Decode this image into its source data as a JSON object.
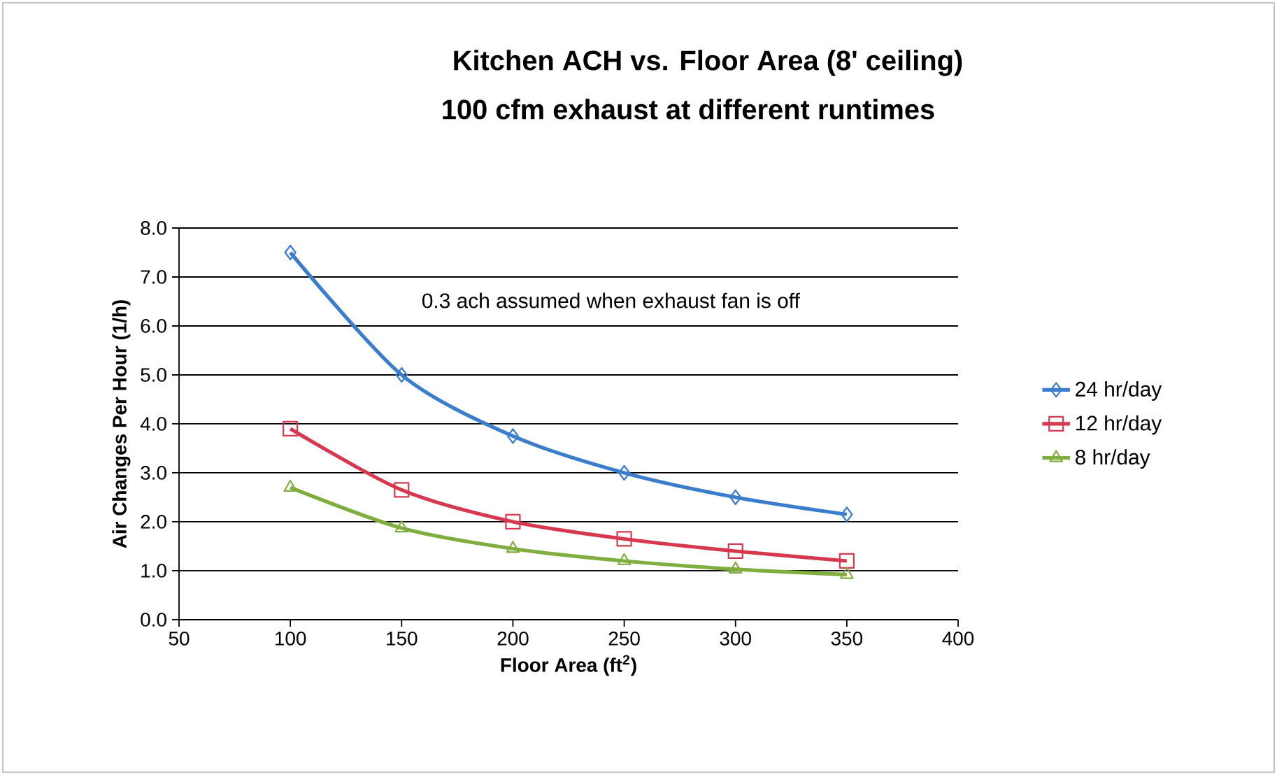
{
  "chart_data": {
    "type": "line",
    "title": "Kitchen ACH vs. Floor Area (8' ceiling)",
    "subtitle": "100 cfm exhaust at different runtimes",
    "xlabel": "Floor Area (ft$^{2}$)",
    "ylabel": "Air Changes Per Hour (1/h)",
    "annotations": [
      "0.3 ach assumed when exhaust fan is off"
    ],
    "x": [
      100,
      150,
      200,
      250,
      300,
      350
    ],
    "series": [
      {
        "name": "24 hr/day",
        "color": "#3a7dcc",
        "marker": "diamond",
        "values": [
          7.5,
          5.0,
          3.75,
          3.0,
          2.5,
          2.15
        ]
      },
      {
        "name": "12 hr/day",
        "color": "#d6384f",
        "marker": "square",
        "values": [
          3.9,
          2.65,
          2.0,
          1.65,
          1.4,
          1.2
        ]
      },
      {
        "name": "8 hr/day",
        "color": "#7fae3f",
        "marker": "triangle",
        "values": [
          2.7,
          1.87,
          1.45,
          1.2,
          1.03,
          0.92
        ]
      }
    ],
    "xlim": [
      50,
      400
    ],
    "xticks": [
      50,
      100,
      150,
      200,
      250,
      300,
      350,
      400
    ],
    "ylim": [
      0,
      8
    ],
    "yticks": [
      {
        "value": 0,
        "label": "0.0"
      },
      {
        "value": 1,
        "label": "1.0"
      },
      {
        "value": 2,
        "label": "2.0"
      },
      {
        "value": 3,
        "label": "3.0"
      },
      {
        "value": 4,
        "label": "4.0"
      },
      {
        "value": 5,
        "label": "5.0"
      },
      {
        "value": 6,
        "label": "6.0"
      },
      {
        "value": 7,
        "label": "7.0"
      },
      {
        "value": 8,
        "label": "8.0"
      }
    ],
    "grid": "y",
    "legend": "right",
    "line_style": "solid"
  }
}
